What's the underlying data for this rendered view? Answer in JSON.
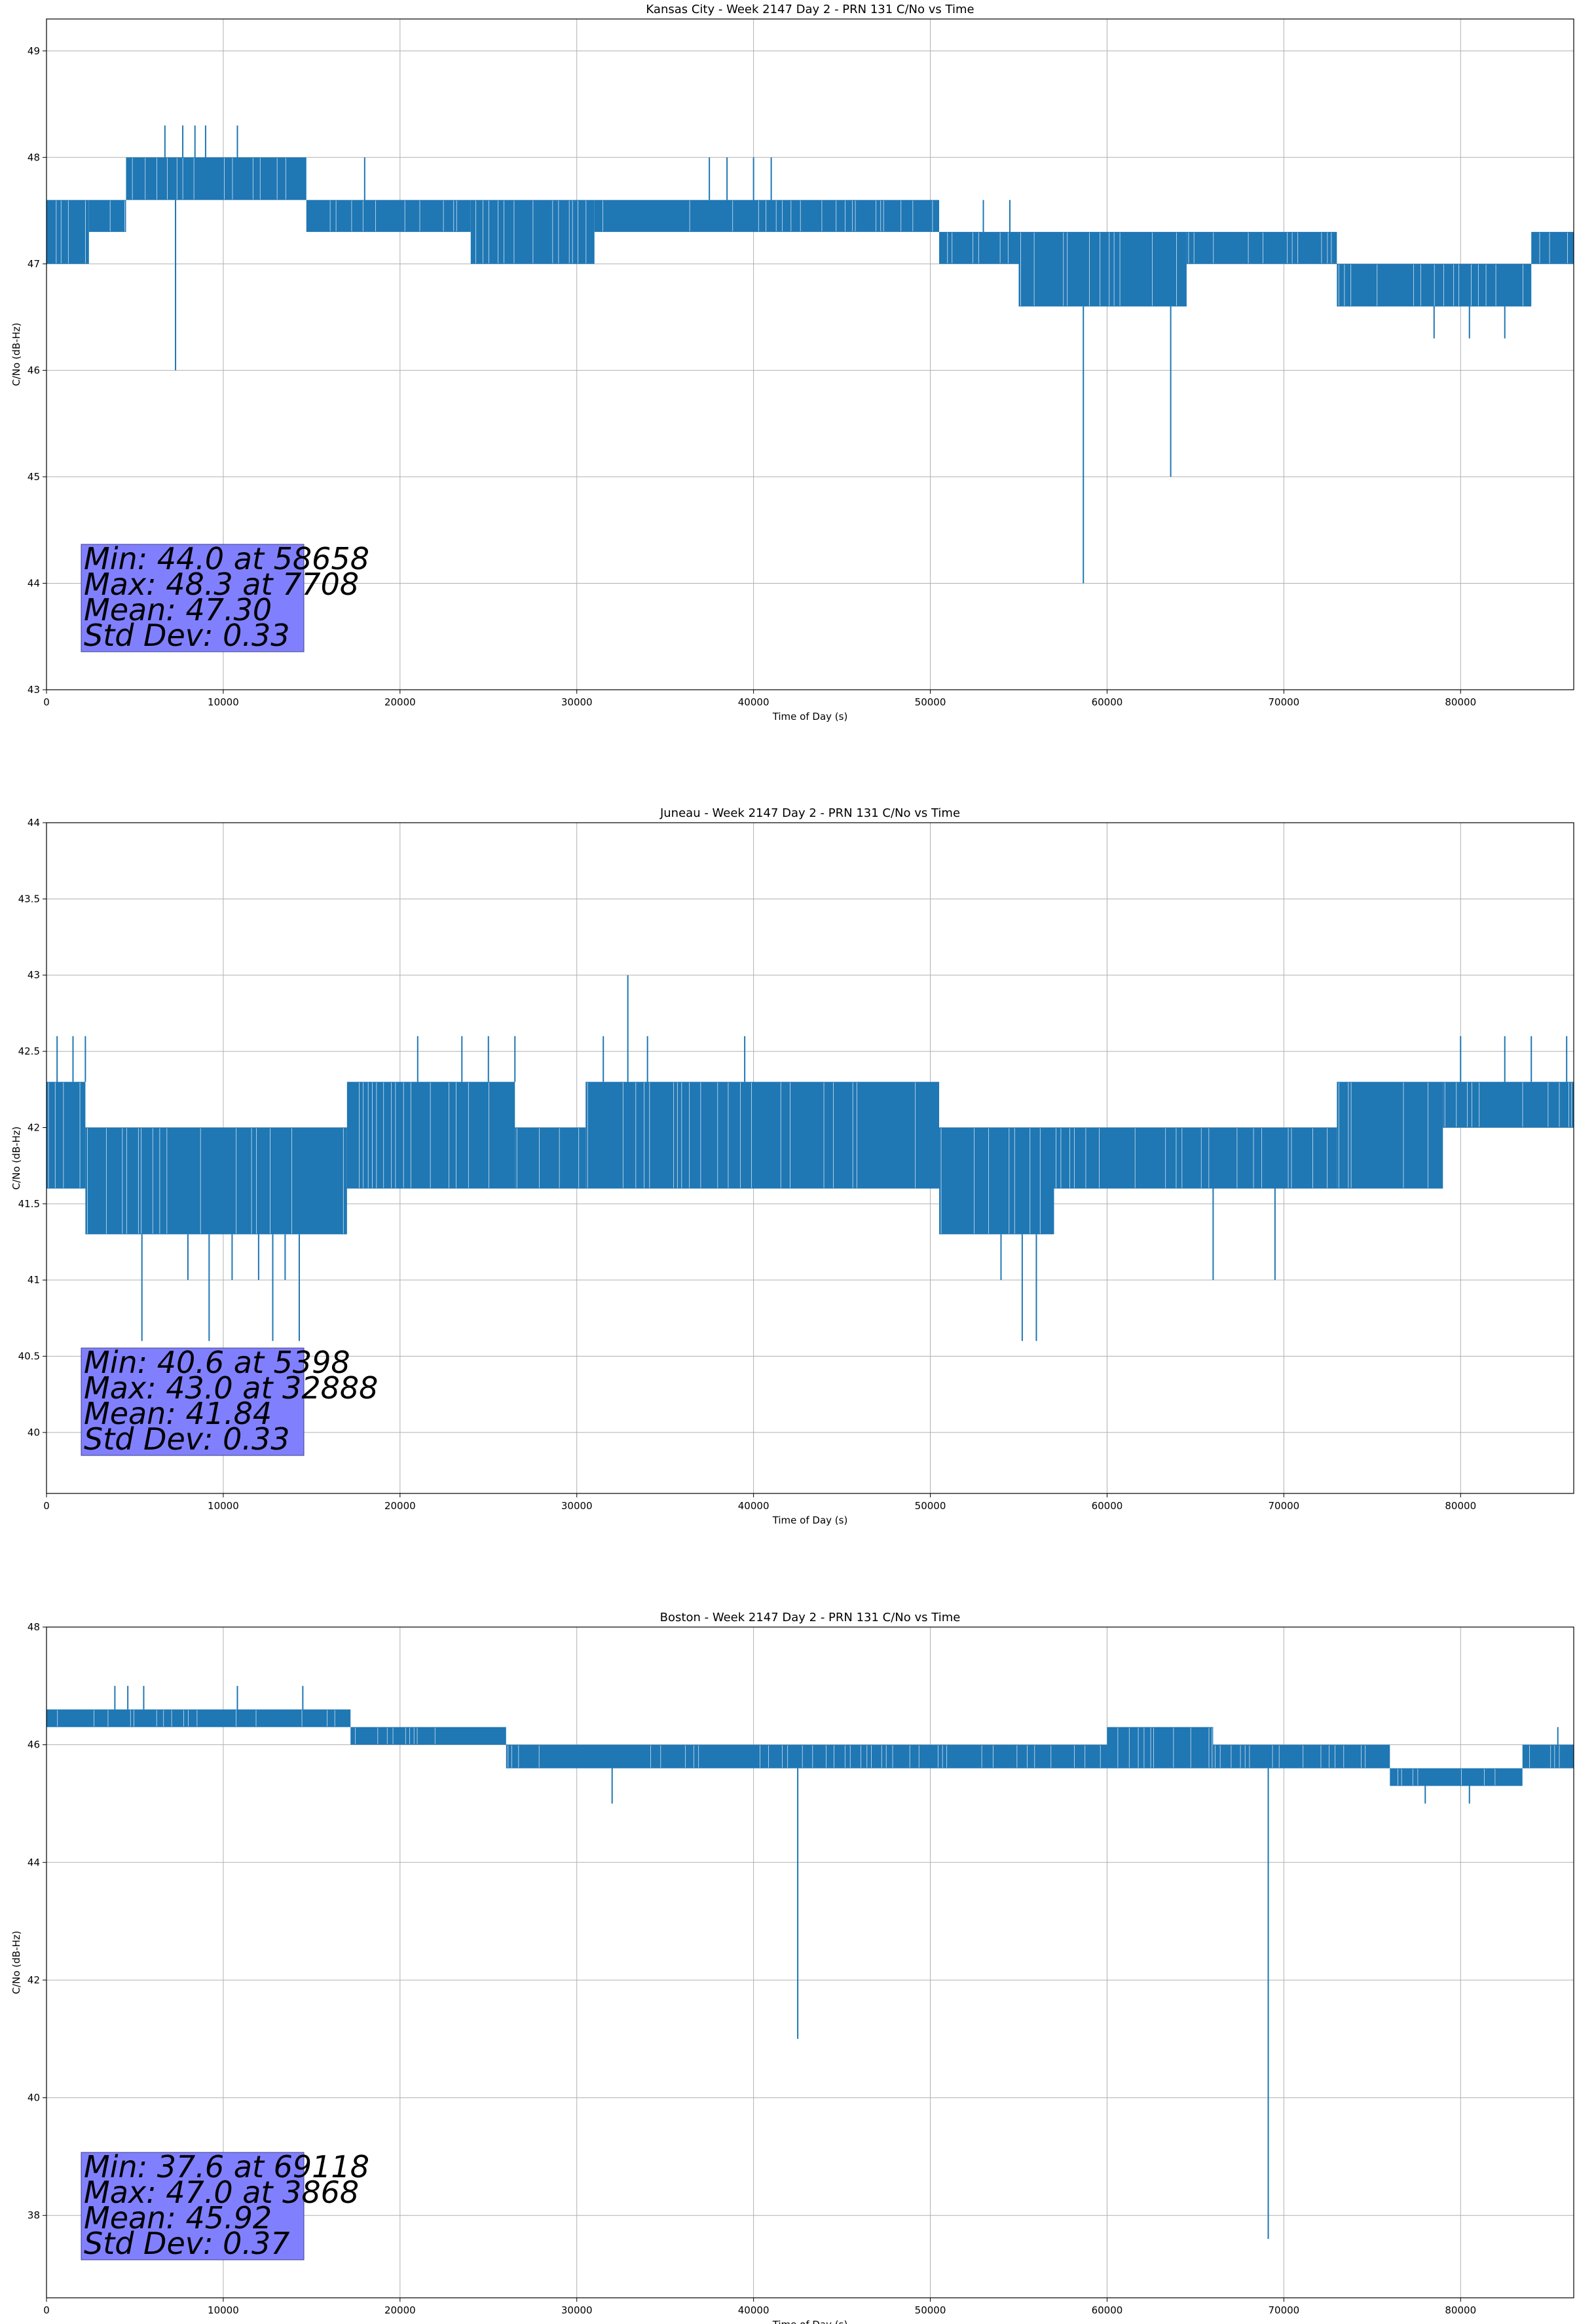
{
  "colors": {
    "series": "#1f77b4",
    "grid": "#b0b0b0",
    "stats_box": "#8080ff"
  },
  "chart_data": [
    {
      "type": "line",
      "title": "Kansas City - Week 2147 Day 2 - PRN 131 C/No vs Time",
      "xlabel": "Time of Day (s)",
      "ylabel": "C/No (dB-Hz)",
      "xlim": [
        0,
        86400
      ],
      "ylim": [
        43,
        49.3
      ],
      "xticks": [
        0,
        10000,
        20000,
        30000,
        40000,
        50000,
        60000,
        70000,
        80000
      ],
      "yticks": [
        43,
        44,
        45,
        46,
        47,
        48,
        49
      ],
      "grid": true,
      "stats": [
        "Min: 44.0 at 58658",
        "Max: 48.3 at 7708",
        "Mean: 47.30",
        "Std Dev: 0.33"
      ],
      "segments": [
        {
          "x0": 0,
          "x1": 2400,
          "low": 47.0,
          "high": 47.6
        },
        {
          "x0": 2400,
          "x1": 4500,
          "low": 47.3,
          "high": 47.6
        },
        {
          "x0": 4500,
          "x1": 14700,
          "low": 47.6,
          "high": 48.0
        },
        {
          "x0": 14700,
          "x1": 24000,
          "low": 47.3,
          "high": 47.6
        },
        {
          "x0": 24000,
          "x1": 31000,
          "low": 47.0,
          "high": 47.6
        },
        {
          "x0": 31000,
          "x1": 50500,
          "low": 47.3,
          "high": 47.6
        },
        {
          "x0": 50500,
          "x1": 55000,
          "low": 47.0,
          "high": 47.3
        },
        {
          "x0": 55000,
          "x1": 64500,
          "low": 46.6,
          "high": 47.3
        },
        {
          "x0": 64500,
          "x1": 73000,
          "low": 47.0,
          "high": 47.3
        },
        {
          "x0": 73000,
          "x1": 84000,
          "low": 46.6,
          "high": 47.0
        },
        {
          "x0": 84000,
          "x1": 86400,
          "low": 47.0,
          "high": 47.3
        }
      ],
      "spikes": [
        {
          "x": 6700,
          "y": 48.3
        },
        {
          "x": 7708,
          "y": 48.3
        },
        {
          "x": 8400,
          "y": 48.3
        },
        {
          "x": 9000,
          "y": 48.3
        },
        {
          "x": 10800,
          "y": 48.3
        },
        {
          "x": 7300,
          "y": 46.0
        },
        {
          "x": 18000,
          "y": 48.0
        },
        {
          "x": 37500,
          "y": 48.0
        },
        {
          "x": 38500,
          "y": 48.0
        },
        {
          "x": 40000,
          "y": 48.0
        },
        {
          "x": 41000,
          "y": 48.0
        },
        {
          "x": 53000,
          "y": 47.6
        },
        {
          "x": 54500,
          "y": 47.6
        },
        {
          "x": 58658,
          "y": 44.0
        },
        {
          "x": 63600,
          "y": 45.0
        },
        {
          "x": 78500,
          "y": 46.3
        },
        {
          "x": 80500,
          "y": 46.3
        },
        {
          "x": 82500,
          "y": 46.3
        }
      ]
    },
    {
      "type": "line",
      "title": "Juneau - Week 2147 Day 2 - PRN 131 C/No vs Time",
      "xlabel": "Time of Day (s)",
      "ylabel": "C/No (dB-Hz)",
      "xlim": [
        0,
        86400
      ],
      "ylim": [
        39.6,
        44.0
      ],
      "xticks": [
        0,
        10000,
        20000,
        30000,
        40000,
        50000,
        60000,
        70000,
        80000
      ],
      "yticks": [
        40.0,
        40.5,
        41.0,
        41.5,
        42.0,
        42.5,
        43.0,
        43.5,
        44.0
      ],
      "grid": true,
      "stats": [
        "Min: 40.6 at 5398",
        "Max: 43.0 at 32888",
        "Mean: 41.84",
        "Std Dev: 0.33"
      ],
      "segments": [
        {
          "x0": 0,
          "x1": 2200,
          "low": 41.6,
          "high": 42.3
        },
        {
          "x0": 2200,
          "x1": 17000,
          "low": 41.3,
          "high": 42.0
        },
        {
          "x0": 17000,
          "x1": 26500,
          "low": 41.6,
          "high": 42.3
        },
        {
          "x0": 26500,
          "x1": 30500,
          "low": 41.6,
          "high": 42.0
        },
        {
          "x0": 30500,
          "x1": 50500,
          "low": 41.6,
          "high": 42.3
        },
        {
          "x0": 50500,
          "x1": 57000,
          "low": 41.3,
          "high": 42.0
        },
        {
          "x0": 57000,
          "x1": 73000,
          "low": 41.6,
          "high": 42.0
        },
        {
          "x0": 73000,
          "x1": 79000,
          "low": 41.6,
          "high": 42.3
        },
        {
          "x0": 79000,
          "x1": 86400,
          "low": 42.0,
          "high": 42.3
        }
      ],
      "spikes": [
        {
          "x": 600,
          "y": 42.6
        },
        {
          "x": 1500,
          "y": 42.6
        },
        {
          "x": 2200,
          "y": 42.6
        },
        {
          "x": 5398,
          "y": 40.6
        },
        {
          "x": 9200,
          "y": 40.6
        },
        {
          "x": 12800,
          "y": 40.6
        },
        {
          "x": 14300,
          "y": 40.6
        },
        {
          "x": 8000,
          "y": 41.0
        },
        {
          "x": 10500,
          "y": 41.0
        },
        {
          "x": 12000,
          "y": 41.0
        },
        {
          "x": 13500,
          "y": 41.0
        },
        {
          "x": 21000,
          "y": 42.6
        },
        {
          "x": 23500,
          "y": 42.6
        },
        {
          "x": 25000,
          "y": 42.6
        },
        {
          "x": 26500,
          "y": 42.6
        },
        {
          "x": 32888,
          "y": 43.0
        },
        {
          "x": 31500,
          "y": 42.6
        },
        {
          "x": 34000,
          "y": 42.6
        },
        {
          "x": 39500,
          "y": 42.6
        },
        {
          "x": 54000,
          "y": 41.0
        },
        {
          "x": 55200,
          "y": 40.6
        },
        {
          "x": 56000,
          "y": 40.6
        },
        {
          "x": 66000,
          "y": 41.0
        },
        {
          "x": 69500,
          "y": 41.0
        },
        {
          "x": 80000,
          "y": 42.6
        },
        {
          "x": 82500,
          "y": 42.6
        },
        {
          "x": 84000,
          "y": 42.6
        },
        {
          "x": 86000,
          "y": 42.6
        }
      ]
    },
    {
      "type": "line",
      "title": "Boston - Week 2147 Day 2 - PRN 131 C/No vs Time",
      "xlabel": "Time of Day (s)",
      "ylabel": "C/No (dB-Hz)",
      "xlim": [
        0,
        86400
      ],
      "ylim": [
        36.6,
        48
      ],
      "xticks": [
        0,
        10000,
        20000,
        30000,
        40000,
        50000,
        60000,
        70000,
        80000
      ],
      "yticks": [
        38,
        40,
        42,
        44,
        46,
        48
      ],
      "grid": true,
      "stats": [
        "Min: 37.6 at 69118",
        "Max: 47.0 at 3868",
        "Mean: 45.92",
        "Std Dev: 0.37"
      ],
      "segments": [
        {
          "x0": 0,
          "x1": 17200,
          "low": 46.3,
          "high": 46.6
        },
        {
          "x0": 17200,
          "x1": 26000,
          "low": 46.0,
          "high": 46.3
        },
        {
          "x0": 26000,
          "x1": 60000,
          "low": 45.6,
          "high": 46.0
        },
        {
          "x0": 60000,
          "x1": 66000,
          "low": 45.6,
          "high": 46.3
        },
        {
          "x0": 66000,
          "x1": 76000,
          "low": 45.6,
          "high": 46.0
        },
        {
          "x0": 76000,
          "x1": 83500,
          "low": 45.3,
          "high": 45.6
        },
        {
          "x0": 83500,
          "x1": 86400,
          "low": 45.6,
          "high": 46.0
        }
      ],
      "spikes": [
        {
          "x": 3868,
          "y": 47.0
        },
        {
          "x": 4600,
          "y": 47.0
        },
        {
          "x": 5500,
          "y": 47.0
        },
        {
          "x": 10800,
          "y": 47.0
        },
        {
          "x": 14500,
          "y": 47.0
        },
        {
          "x": 42500,
          "y": 41.0
        },
        {
          "x": 69118,
          "y": 37.6
        },
        {
          "x": 32000,
          "y": 45.0
        },
        {
          "x": 78000,
          "y": 45.0
        },
        {
          "x": 80500,
          "y": 45.0
        },
        {
          "x": 85500,
          "y": 46.3
        }
      ]
    }
  ]
}
